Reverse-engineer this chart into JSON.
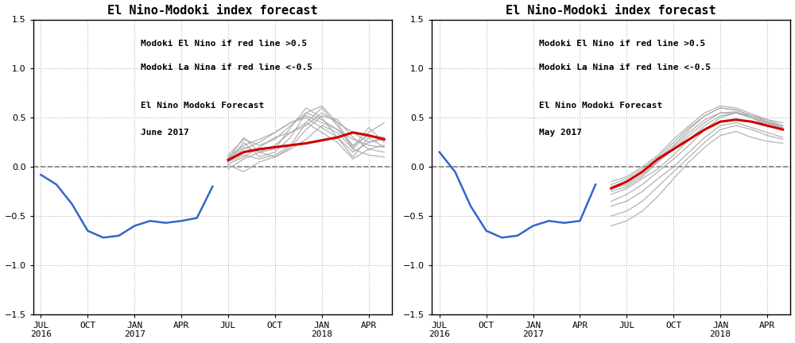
{
  "title": "El Nino-Modoki index forecast",
  "annotation_line1": "Modoki El Nino if red line >0.5",
  "annotation_line2": "Modoki La Nina if red line <-0.5",
  "annotation_line3": "El Nino Modoki Forecast",
  "panel1_month": "June 2017",
  "panel2_month": "May 2017",
  "ylim": [
    -1.5,
    1.5
  ],
  "yticks": [
    -1.5,
    -1.0,
    -0.5,
    0.0,
    0.5,
    1.0,
    1.5
  ],
  "xtick_labels": [
    "JUL\n2016",
    "OCT",
    "JAN\n2017",
    "APR",
    "JUL",
    "OCT",
    "JAN\n2018",
    "APR"
  ],
  "xtick_positions": [
    0,
    3,
    6,
    9,
    12,
    15,
    18,
    21
  ],
  "text_color": "#000000",
  "text_color2": "#000000",
  "blue_color": "#3366cc",
  "red_color": "#cc0000",
  "gray_color": "#aaaaaa",
  "background": "#ffffff",
  "grid_color": "#aaaaaa",
  "zero_line_color": "#666666",
  "blue_x1": [
    0,
    1,
    2,
    3,
    4,
    5,
    6,
    7,
    8,
    9,
    10,
    11
  ],
  "blue_y1": [
    -0.08,
    -0.18,
    -0.38,
    -0.65,
    -0.72,
    -0.7,
    -0.6,
    -0.55,
    -0.57,
    -0.55,
    -0.52,
    -0.2
  ],
  "red_x1": [
    12,
    13,
    14,
    15,
    16,
    17,
    18,
    19,
    20,
    21,
    22
  ],
  "red_y1": [
    0.07,
    0.15,
    0.18,
    0.2,
    0.22,
    0.24,
    0.27,
    0.3,
    0.35,
    0.32,
    0.28
  ],
  "gray_x1": [
    12,
    13,
    14,
    15,
    16,
    17,
    18,
    19,
    20,
    21,
    22
  ],
  "gray_june": [
    [
      0.05,
      0.25,
      0.1,
      0.15,
      0.3,
      0.55,
      0.62,
      0.45,
      0.2,
      0.4,
      0.25
    ],
    [
      0.08,
      0.3,
      0.15,
      0.18,
      0.4,
      0.6,
      0.5,
      0.3,
      0.1,
      0.3,
      0.2
    ],
    [
      0.03,
      0.1,
      0.2,
      0.3,
      0.35,
      0.42,
      0.55,
      0.45,
      0.35,
      0.25,
      0.3
    ],
    [
      0.1,
      0.22,
      0.28,
      0.35,
      0.45,
      0.52,
      0.45,
      0.38,
      0.28,
      0.22,
      0.2
    ],
    [
      0.05,
      0.12,
      0.08,
      0.12,
      0.22,
      0.45,
      0.6,
      0.42,
      0.18,
      0.35,
      0.45
    ],
    [
      0.02,
      -0.05,
      0.05,
      0.1,
      0.18,
      0.28,
      0.42,
      0.35,
      0.18,
      0.12,
      0.1
    ],
    [
      0.06,
      0.18,
      0.25,
      0.35,
      0.45,
      0.5,
      0.4,
      0.3,
      0.15,
      0.25,
      0.28
    ],
    [
      0.08,
      0.2,
      0.15,
      0.1,
      0.2,
      0.38,
      0.52,
      0.48,
      0.3,
      0.18,
      0.15
    ],
    [
      -0.02,
      0.08,
      0.15,
      0.22,
      0.35,
      0.45,
      0.35,
      0.25,
      0.08,
      0.18,
      0.22
    ],
    [
      0.12,
      0.28,
      0.22,
      0.28,
      0.42,
      0.55,
      0.48,
      0.38,
      0.22,
      0.32,
      0.3
    ]
  ],
  "blue_x2": [
    0,
    1,
    2,
    3,
    4,
    5,
    6,
    7,
    8,
    9,
    10
  ],
  "blue_y2": [
    0.15,
    -0.05,
    -0.4,
    -0.65,
    -0.72,
    -0.7,
    -0.6,
    -0.55,
    -0.57,
    -0.55,
    -0.18
  ],
  "red_x2": [
    11,
    12,
    13,
    14,
    15,
    16,
    17,
    18,
    19,
    20,
    21,
    22
  ],
  "red_y2": [
    -0.22,
    -0.15,
    -0.05,
    0.08,
    0.18,
    0.28,
    0.38,
    0.46,
    0.48,
    0.46,
    0.42,
    0.38
  ],
  "gray_x2": [
    11,
    12,
    13,
    14,
    15,
    16,
    17,
    18,
    19,
    20,
    21,
    22
  ],
  "gray_may": [
    [
      -0.25,
      -0.2,
      -0.1,
      0.05,
      0.2,
      0.35,
      0.48,
      0.55,
      0.55,
      0.5,
      0.42,
      0.38
    ],
    [
      -0.28,
      -0.22,
      -0.12,
      -0.02,
      0.12,
      0.28,
      0.42,
      0.52,
      0.55,
      0.5,
      0.45,
      0.4
    ],
    [
      -0.35,
      -0.28,
      -0.18,
      -0.05,
      0.08,
      0.22,
      0.38,
      0.5,
      0.55,
      0.52,
      0.48,
      0.45
    ],
    [
      -0.2,
      -0.15,
      -0.05,
      0.08,
      0.22,
      0.38,
      0.52,
      0.6,
      0.58,
      0.52,
      0.46,
      0.42
    ],
    [
      -0.4,
      -0.35,
      -0.25,
      -0.12,
      0.0,
      0.15,
      0.3,
      0.42,
      0.45,
      0.4,
      0.35,
      0.3
    ],
    [
      -0.22,
      -0.18,
      -0.08,
      0.05,
      0.18,
      0.32,
      0.45,
      0.55,
      0.56,
      0.5,
      0.44,
      0.4
    ],
    [
      -0.18,
      -0.12,
      -0.02,
      0.1,
      0.25,
      0.4,
      0.52,
      0.6,
      0.58,
      0.52,
      0.46,
      0.4
    ],
    [
      -0.5,
      -0.45,
      -0.35,
      -0.2,
      -0.05,
      0.1,
      0.25,
      0.38,
      0.42,
      0.38,
      0.32,
      0.28
    ],
    [
      -0.6,
      -0.55,
      -0.45,
      -0.3,
      -0.12,
      0.05,
      0.2,
      0.32,
      0.36,
      0.3,
      0.26,
      0.24
    ],
    [
      -0.15,
      -0.1,
      -0.0,
      0.12,
      0.28,
      0.42,
      0.55,
      0.62,
      0.6,
      0.54,
      0.48,
      0.42
    ]
  ]
}
